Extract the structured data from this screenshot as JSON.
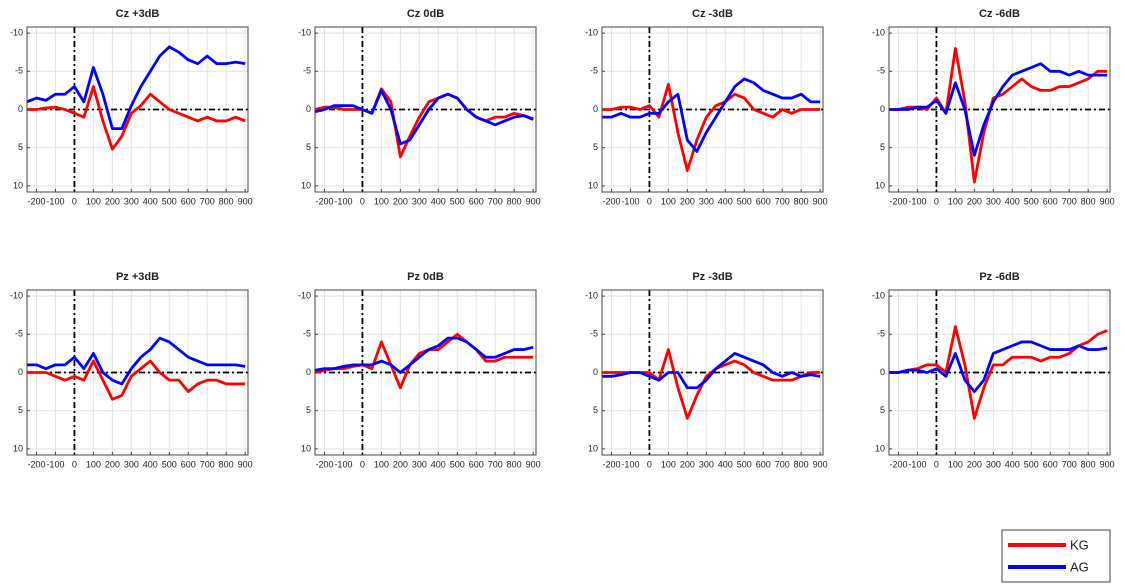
{
  "chart_data": [
    {
      "type": "line",
      "title": "Cz +3dB",
      "x": [
        -250,
        -200,
        -150,
        -100,
        -50,
        0,
        50,
        100,
        150,
        200,
        250,
        300,
        350,
        400,
        450,
        500,
        550,
        600,
        650,
        700,
        750,
        800,
        850,
        900
      ],
      "xlim": [
        -250,
        915
      ],
      "ylim": [
        -10.8,
        10.8
      ],
      "y_reversed": true,
      "xticks": [
        -200,
        -100,
        0,
        100,
        200,
        300,
        400,
        500,
        600,
        700,
        800,
        900
      ],
      "yticks": [
        -10,
        -5,
        0,
        5,
        10
      ],
      "grid": true,
      "vline": 0,
      "hline": 0,
      "series": [
        {
          "name": "KG",
          "color": "#ff0000",
          "values": [
            0,
            0,
            -0.2,
            -0.3,
            0,
            0.5,
            1,
            -3,
            1.5,
            5.2,
            3.5,
            0.5,
            -0.5,
            -2,
            -1,
            0,
            0.5,
            1,
            1.5,
            1,
            1.5,
            1.5,
            1,
            1.5
          ]
        },
        {
          "name": "AG",
          "color": "#0000ff",
          "values": [
            -1,
            -1.5,
            -1.2,
            -2,
            -2,
            -3,
            -1,
            -5.5,
            -2,
            2.5,
            2.5,
            -0.5,
            -3,
            -5,
            -7,
            -8.2,
            -7.5,
            -6.5,
            -6,
            -7,
            -6,
            -6,
            -6.2,
            -6
          ]
        }
      ]
    },
    {
      "type": "line",
      "title": "Cz 0dB",
      "x": [
        -250,
        -200,
        -150,
        -100,
        -50,
        0,
        50,
        100,
        150,
        200,
        250,
        300,
        350,
        400,
        450,
        500,
        550,
        600,
        650,
        700,
        750,
        800,
        850,
        900
      ],
      "xlim": [
        -250,
        915
      ],
      "ylim": [
        -10.8,
        10.8
      ],
      "y_reversed": true,
      "xticks": [
        -200,
        -100,
        0,
        100,
        200,
        300,
        400,
        500,
        600,
        700,
        800,
        900
      ],
      "yticks": [
        -10,
        -5,
        0,
        5,
        10
      ],
      "grid": true,
      "vline": 0,
      "hline": 0,
      "series": [
        {
          "name": "KG",
          "color": "#ff0000",
          "values": [
            0,
            -0.3,
            -0.3,
            0,
            0,
            0,
            0.5,
            -2.7,
            -1,
            6.2,
            3.5,
            1,
            -1,
            -1.5,
            -2,
            -1.5,
            0,
            1,
            1.5,
            1,
            1,
            0.5,
            0.8,
            1.2
          ]
        },
        {
          "name": "AG",
          "color": "#0000ff",
          "values": [
            0.3,
            0,
            -0.5,
            -0.5,
            -0.5,
            0,
            0.5,
            -2.5,
            0,
            4.5,
            4,
            2,
            0,
            -1.5,
            -2,
            -1.5,
            0,
            1,
            1.5,
            2,
            1.5,
            1,
            0.8,
            1.3
          ]
        }
      ]
    },
    {
      "type": "line",
      "title": "Cz -3dB",
      "x": [
        -250,
        -200,
        -150,
        -100,
        -50,
        0,
        50,
        100,
        150,
        200,
        250,
        300,
        350,
        400,
        450,
        500,
        550,
        600,
        650,
        700,
        750,
        800,
        850,
        900
      ],
      "xlim": [
        -250,
        915
      ],
      "ylim": [
        -10.8,
        10.8
      ],
      "y_reversed": true,
      "xticks": [
        -200,
        -100,
        0,
        100,
        200,
        300,
        400,
        500,
        600,
        700,
        800,
        900
      ],
      "yticks": [
        -10,
        -5,
        0,
        5,
        10
      ],
      "grid": true,
      "vline": 0,
      "hline": 0,
      "series": [
        {
          "name": "KG",
          "color": "#ff0000",
          "values": [
            0,
            0,
            -0.3,
            -0.3,
            0,
            -0.5,
            1,
            -3.3,
            3,
            8,
            4,
            1,
            -0.5,
            -1,
            -2,
            -1.5,
            0,
            0.5,
            1,
            0,
            0.5,
            0,
            0,
            0
          ]
        },
        {
          "name": "AG",
          "color": "#0000ff",
          "values": [
            1,
            1,
            0.5,
            1,
            1,
            0.5,
            0.5,
            -1,
            -2,
            4,
            5.5,
            3,
            1,
            -1,
            -3,
            -4,
            -3.5,
            -2.5,
            -2,
            -1.5,
            -1.5,
            -2,
            -1,
            -1
          ]
        }
      ]
    },
    {
      "type": "line",
      "title": "Cz -6dB",
      "x": [
        -250,
        -200,
        -150,
        -100,
        -50,
        0,
        50,
        100,
        150,
        200,
        250,
        300,
        350,
        400,
        450,
        500,
        550,
        600,
        650,
        700,
        750,
        800,
        850,
        900
      ],
      "xlim": [
        -250,
        915
      ],
      "ylim": [
        -10.8,
        10.8
      ],
      "y_reversed": true,
      "xticks": [
        -200,
        -100,
        0,
        100,
        200,
        300,
        400,
        500,
        600,
        700,
        800,
        900
      ],
      "yticks": [
        -10,
        -5,
        0,
        5,
        10
      ],
      "grid": true,
      "vline": 0,
      "hline": 0,
      "series": [
        {
          "name": "KG",
          "color": "#ff0000",
          "values": [
            0,
            0,
            -0.3,
            -0.3,
            0,
            -1.5,
            0.5,
            -8,
            -1,
            9.5,
            3,
            -1.5,
            -2,
            -3,
            -4,
            -3,
            -2.5,
            -2.5,
            -3,
            -3,
            -3.5,
            -4,
            -5,
            -5
          ]
        },
        {
          "name": "AG",
          "color": "#0000ff",
          "values": [
            0,
            0,
            0,
            -0.3,
            -0.3,
            -1.2,
            0.5,
            -3.5,
            0,
            6,
            2,
            -1,
            -3,
            -4.5,
            -5,
            -5.5,
            -6,
            -5,
            -5,
            -4.5,
            -5,
            -4.5,
            -4.5,
            -4.5
          ]
        }
      ]
    },
    {
      "type": "line",
      "title": "Pz +3dB",
      "x": [
        -250,
        -200,
        -150,
        -100,
        -50,
        0,
        50,
        100,
        150,
        200,
        250,
        300,
        350,
        400,
        450,
        500,
        550,
        600,
        650,
        700,
        750,
        800,
        850,
        900
      ],
      "xlim": [
        -250,
        915
      ],
      "ylim": [
        -10.8,
        10.8
      ],
      "y_reversed": true,
      "xticks": [
        -200,
        -100,
        0,
        100,
        200,
        300,
        400,
        500,
        600,
        700,
        800,
        900
      ],
      "yticks": [
        -10,
        -5,
        0,
        5,
        10
      ],
      "grid": true,
      "vline": 0,
      "hline": 0,
      "series": [
        {
          "name": "KG",
          "color": "#ff0000",
          "values": [
            0,
            0,
            0,
            0.5,
            1,
            0.5,
            1,
            -1.5,
            1,
            3.5,
            3,
            0.5,
            -0.5,
            -1.5,
            0,
            1,
            1,
            2.5,
            1.5,
            1,
            1,
            1.5,
            1.5,
            1.5
          ]
        },
        {
          "name": "AG",
          "color": "#0000ff",
          "values": [
            -1,
            -1,
            -0.5,
            -1,
            -1,
            -2,
            -0.5,
            -2.5,
            0,
            1,
            1.5,
            -0.5,
            -2,
            -3,
            -4.5,
            -4,
            -3,
            -2,
            -1.5,
            -1,
            -1,
            -1,
            -1,
            -0.8
          ]
        }
      ]
    },
    {
      "type": "line",
      "title": "Pz 0dB",
      "x": [
        -250,
        -200,
        -150,
        -100,
        -50,
        0,
        50,
        100,
        150,
        200,
        250,
        300,
        350,
        400,
        450,
        500,
        550,
        600,
        650,
        700,
        750,
        800,
        850,
        900
      ],
      "xlim": [
        -250,
        915
      ],
      "ylim": [
        -10.8,
        10.8
      ],
      "y_reversed": true,
      "xticks": [
        -200,
        -100,
        0,
        100,
        200,
        300,
        400,
        500,
        600,
        700,
        800,
        900
      ],
      "yticks": [
        -10,
        -5,
        0,
        5,
        10
      ],
      "grid": true,
      "vline": 0,
      "hline": 0,
      "series": [
        {
          "name": "KG",
          "color": "#ff0000",
          "values": [
            0,
            -0.3,
            -0.5,
            -0.5,
            -0.8,
            -1,
            -0.5,
            -4,
            -1,
            2,
            -1,
            -2.5,
            -3,
            -3,
            -4,
            -5,
            -4,
            -3,
            -1.5,
            -1.5,
            -2,
            -2,
            -2,
            -2
          ]
        },
        {
          "name": "AG",
          "color": "#0000ff",
          "values": [
            -0.3,
            -0.5,
            -0.5,
            -0.8,
            -1,
            -1,
            -1,
            -1.5,
            -1,
            0,
            -1,
            -2,
            -3,
            -3.5,
            -4.5,
            -4.5,
            -4,
            -3,
            -2,
            -2,
            -2.5,
            -3,
            -3,
            -3.3
          ]
        }
      ]
    },
    {
      "type": "line",
      "title": "Pz -3dB",
      "x": [
        -250,
        -200,
        -150,
        -100,
        -50,
        0,
        50,
        100,
        150,
        200,
        250,
        300,
        350,
        400,
        450,
        500,
        550,
        600,
        650,
        700,
        750,
        800,
        850,
        900
      ],
      "xlim": [
        -250,
        915
      ],
      "ylim": [
        -10.8,
        10.8
      ],
      "y_reversed": true,
      "xticks": [
        -200,
        -100,
        0,
        100,
        200,
        300,
        400,
        500,
        600,
        700,
        800,
        900
      ],
      "yticks": [
        -10,
        -5,
        0,
        5,
        10
      ],
      "grid": true,
      "vline": 0,
      "hline": 0,
      "series": [
        {
          "name": "KG",
          "color": "#ff0000",
          "values": [
            0,
            0,
            0,
            0,
            0,
            0,
            1,
            -3,
            2,
            6,
            3,
            0.5,
            -0.5,
            -1,
            -1.5,
            -1,
            0,
            0.5,
            1,
            1,
            1,
            0.5,
            0,
            0
          ]
        },
        {
          "name": "AG",
          "color": "#0000ff",
          "values": [
            0.5,
            0.5,
            0.3,
            0,
            0,
            0.5,
            1,
            0,
            0,
            2,
            2,
            1,
            -0.5,
            -1.5,
            -2.5,
            -2,
            -1.5,
            -1,
            0,
            0.5,
            0,
            0.5,
            0.3,
            0.5
          ]
        }
      ]
    },
    {
      "type": "line",
      "title": "Pz -6dB",
      "x": [
        -250,
        -200,
        -150,
        -100,
        -50,
        0,
        50,
        100,
        150,
        200,
        250,
        300,
        350,
        400,
        450,
        500,
        550,
        600,
        650,
        700,
        750,
        800,
        850,
        900
      ],
      "xlim": [
        -250,
        915
      ],
      "ylim": [
        -10.8,
        10.8
      ],
      "y_reversed": true,
      "xticks": [
        -200,
        -100,
        0,
        100,
        200,
        300,
        400,
        500,
        600,
        700,
        800,
        900
      ],
      "yticks": [
        -10,
        -5,
        0,
        5,
        10
      ],
      "grid": true,
      "vline": 0,
      "hline": 0,
      "series": [
        {
          "name": "KG",
          "color": "#ff0000",
          "values": [
            0,
            0,
            -0.3,
            -0.5,
            -1,
            -1,
            0,
            -6,
            -1,
            6,
            2,
            -1,
            -1,
            -2,
            -2,
            -2,
            -1.5,
            -2,
            -2,
            -2.5,
            -3.5,
            -4,
            -5,
            -5.5
          ]
        },
        {
          "name": "AG",
          "color": "#0000ff",
          "values": [
            0,
            0,
            -0.3,
            -0.3,
            0,
            -0.5,
            0.5,
            -2.5,
            1,
            2.5,
            1,
            -2.5,
            -3,
            -3.5,
            -4,
            -4,
            -3.5,
            -3,
            -3,
            -3,
            -3.5,
            -3,
            -3,
            -3.2
          ]
        }
      ]
    }
  ]
}
